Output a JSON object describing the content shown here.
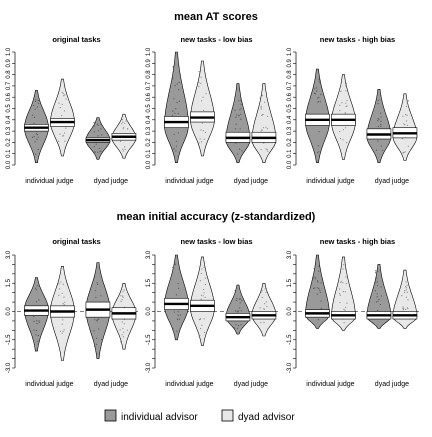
{
  "figure": {
    "row_titles": [
      "mean AT scores",
      "mean initial accuracy (z-standardized)"
    ],
    "legend": {
      "items": [
        {
          "label": "individual advisor",
          "color": "#9a9a9a"
        },
        {
          "label": "dyad advisor",
          "color": "#e8e8e8"
        }
      ]
    }
  },
  "chart_data": [
    {
      "type": "pirate_bean",
      "title": "original tasks",
      "row": 0,
      "col": 0,
      "ylim": [
        0,
        1
      ],
      "yticks": [
        "0.0",
        "0.1",
        "0.2",
        "0.3",
        "0.4",
        "0.5",
        "0.6",
        "0.7",
        "0.8",
        "0.9",
        "1.0"
      ],
      "ytick_values": [
        0,
        0.1,
        0.2,
        0.3,
        0.4,
        0.5,
        0.6,
        0.7,
        0.8,
        0.9,
        1.0
      ],
      "categories": [
        "individual judge",
        "dyad judge"
      ],
      "series": [
        {
          "name": "individual advisor",
          "group": 0,
          "min": 0.02,
          "max": 0.66,
          "mode": 0.33,
          "mean": 0.33,
          "ci": [
            0.3,
            0.36
          ]
        },
        {
          "name": "dyad advisor",
          "group": 0,
          "min": 0.08,
          "max": 0.76,
          "mode": 0.38,
          "mean": 0.38,
          "ci": [
            0.34,
            0.41
          ]
        },
        {
          "name": "individual advisor",
          "group": 1,
          "min": 0.05,
          "max": 0.42,
          "mode": 0.22,
          "mean": 0.22,
          "ci": [
            0.2,
            0.24
          ]
        },
        {
          "name": "dyad advisor",
          "group": 1,
          "min": 0.06,
          "max": 0.45,
          "mode": 0.24,
          "mean": 0.25,
          "ci": [
            0.22,
            0.28
          ]
        }
      ]
    },
    {
      "type": "pirate_bean",
      "title": "new tasks - low bias",
      "row": 0,
      "col": 1,
      "ylim": [
        0,
        1
      ],
      "yticks": [
        "0.0",
        "0.1",
        "0.2",
        "0.3",
        "0.4",
        "0.5",
        "0.6",
        "0.7",
        "0.8",
        "0.9",
        "1.0"
      ],
      "ytick_values": [
        0,
        0.1,
        0.2,
        0.3,
        0.4,
        0.5,
        0.6,
        0.7,
        0.8,
        0.9,
        1.0
      ],
      "categories": [
        "individual judge",
        "dyad judge"
      ],
      "series": [
        {
          "name": "individual advisor",
          "group": 0,
          "min": 0.02,
          "max": 1.0,
          "mode": 0.35,
          "mean": 0.38,
          "ci": [
            0.33,
            0.43
          ]
        },
        {
          "name": "dyad advisor",
          "group": 0,
          "min": 0.08,
          "max": 0.92,
          "mode": 0.4,
          "mean": 0.42,
          "ci": [
            0.38,
            0.47
          ]
        },
        {
          "name": "individual advisor",
          "group": 1,
          "min": 0.02,
          "max": 0.72,
          "mode": 0.22,
          "mean": 0.24,
          "ci": [
            0.2,
            0.29
          ]
        },
        {
          "name": "dyad advisor",
          "group": 1,
          "min": 0.02,
          "max": 0.72,
          "mode": 0.22,
          "mean": 0.24,
          "ci": [
            0.2,
            0.29
          ]
        }
      ]
    },
    {
      "type": "pirate_bean",
      "title": "new tasks - high bias",
      "row": 0,
      "col": 2,
      "ylim": [
        0,
        1
      ],
      "yticks": [
        "0.0",
        "0.1",
        "0.2",
        "0.3",
        "0.4",
        "0.5",
        "0.6",
        "0.7",
        "0.8",
        "0.9",
        "1.0"
      ],
      "ytick_values": [
        0,
        0.1,
        0.2,
        0.3,
        0.4,
        0.5,
        0.6,
        0.7,
        0.8,
        0.9,
        1.0
      ],
      "categories": [
        "individual judge",
        "dyad judge"
      ],
      "series": [
        {
          "name": "individual advisor",
          "group": 0,
          "min": 0.02,
          "max": 0.85,
          "mode": 0.38,
          "mean": 0.4,
          "ci": [
            0.35,
            0.45
          ]
        },
        {
          "name": "dyad advisor",
          "group": 0,
          "min": 0.05,
          "max": 0.8,
          "mode": 0.38,
          "mean": 0.4,
          "ci": [
            0.35,
            0.45
          ]
        },
        {
          "name": "individual advisor",
          "group": 1,
          "min": 0.02,
          "max": 0.67,
          "mode": 0.25,
          "mean": 0.27,
          "ci": [
            0.23,
            0.32
          ]
        },
        {
          "name": "dyad advisor",
          "group": 1,
          "min": 0.04,
          "max": 0.63,
          "mode": 0.25,
          "mean": 0.28,
          "ci": [
            0.24,
            0.33
          ]
        }
      ]
    },
    {
      "type": "pirate_bean",
      "title": "original tasks",
      "row": 1,
      "col": 0,
      "ylim": [
        -3,
        3
      ],
      "yticks": [
        "-3.0",
        "-2.5",
        "-2.0",
        "-1.5",
        "-1.0",
        "-0.5",
        "0.0",
        "0.5",
        "1.0",
        "1.5",
        "2.0",
        "2.5",
        "3.0"
      ],
      "ytick_values": [
        -3,
        -2.5,
        -2,
        -1.5,
        -1,
        -0.5,
        0,
        0.5,
        1,
        1.5,
        2,
        2.5,
        3
      ],
      "ytick_shown": [
        "-3.0",
        "-1.5",
        "0.0",
        "1.5",
        "3.0"
      ],
      "categories": [
        "individual judge",
        "dyad judge"
      ],
      "series": [
        {
          "name": "individual advisor",
          "group": 0,
          "min": -2.1,
          "max": 1.8,
          "mode": 0.1,
          "mean": 0.05,
          "ci": [
            -0.2,
            0.3
          ]
        },
        {
          "name": "dyad advisor",
          "group": 0,
          "min": -2.6,
          "max": 2.4,
          "mode": 0.0,
          "mean": 0.0,
          "ci": [
            -0.3,
            0.3
          ]
        },
        {
          "name": "individual advisor",
          "group": 1,
          "min": -2.5,
          "max": 2.6,
          "mode": 0.1,
          "mean": 0.1,
          "ci": [
            -0.3,
            0.5
          ]
        },
        {
          "name": "dyad advisor",
          "group": 1,
          "min": -2.0,
          "max": 1.5,
          "mode": -0.1,
          "mean": -0.1,
          "ci": [
            -0.4,
            0.2
          ]
        }
      ]
    },
    {
      "type": "pirate_bean",
      "title": "new tasks - low bias",
      "row": 1,
      "col": 1,
      "ylim": [
        -3,
        3
      ],
      "yticks": [
        "-3.0",
        "-2.5",
        "-2.0",
        "-1.5",
        "-1.0",
        "-0.5",
        "0.0",
        "0.5",
        "1.0",
        "1.5",
        "2.0",
        "2.5",
        "3.0"
      ],
      "ytick_values": [
        -3,
        -2.5,
        -2,
        -1.5,
        -1,
        -0.5,
        0,
        0.5,
        1,
        1.5,
        2,
        2.5,
        3
      ],
      "ytick_shown": [
        "-3.0",
        "-1.5",
        "0.0",
        "1.5",
        "3.0"
      ],
      "categories": [
        "individual judge",
        "dyad judge"
      ],
      "series": [
        {
          "name": "individual advisor",
          "group": 0,
          "min": -1.5,
          "max": 3.0,
          "mode": 0.3,
          "mean": 0.4,
          "ci": [
            0.1,
            0.7
          ]
        },
        {
          "name": "dyad advisor",
          "group": 0,
          "min": -1.8,
          "max": 2.9,
          "mode": 0.2,
          "mean": 0.3,
          "ci": [
            0.0,
            0.6
          ]
        },
        {
          "name": "individual advisor",
          "group": 1,
          "min": -1.2,
          "max": 1.4,
          "mode": -0.3,
          "mean": -0.3,
          "ci": [
            -0.5,
            -0.1
          ]
        },
        {
          "name": "dyad advisor",
          "group": 1,
          "min": -1.3,
          "max": 1.5,
          "mode": -0.2,
          "mean": -0.2,
          "ci": [
            -0.4,
            0.0
          ]
        }
      ]
    },
    {
      "type": "pirate_bean",
      "title": "new tasks - high bias",
      "row": 1,
      "col": 2,
      "ylim": [
        -3,
        3
      ],
      "yticks": [
        "-3.0",
        "-2.5",
        "-2.0",
        "-1.5",
        "-1.0",
        "-0.5",
        "0.0",
        "0.5",
        "1.0",
        "1.5",
        "2.0",
        "2.5",
        "3.0"
      ],
      "ytick_values": [
        -3,
        -2.5,
        -2,
        -1.5,
        -1,
        -0.5,
        0,
        0.5,
        1,
        1.5,
        2,
        2.5,
        3
      ],
      "ytick_shown": [
        "-3.0",
        "-1.5",
        "0.0",
        "1.5",
        "3.0"
      ],
      "categories": [
        "individual judge",
        "dyad judge"
      ],
      "series": [
        {
          "name": "individual advisor",
          "group": 0,
          "min": -0.9,
          "max": 3.0,
          "mode": -0.2,
          "mean": -0.1,
          "ci": [
            -0.3,
            0.1
          ]
        },
        {
          "name": "dyad advisor",
          "group": 0,
          "min": -1.0,
          "max": 2.9,
          "mode": -0.3,
          "mean": -0.2,
          "ci": [
            -0.4,
            0.0
          ]
        },
        {
          "name": "individual advisor",
          "group": 1,
          "min": -0.9,
          "max": 2.5,
          "mode": -0.3,
          "mean": -0.2,
          "ci": [
            -0.4,
            0.0
          ]
        },
        {
          "name": "dyad advisor",
          "group": 1,
          "min": -0.9,
          "max": 2.2,
          "mode": -0.3,
          "mean": -0.2,
          "ci": [
            -0.4,
            0.0
          ]
        }
      ]
    }
  ]
}
